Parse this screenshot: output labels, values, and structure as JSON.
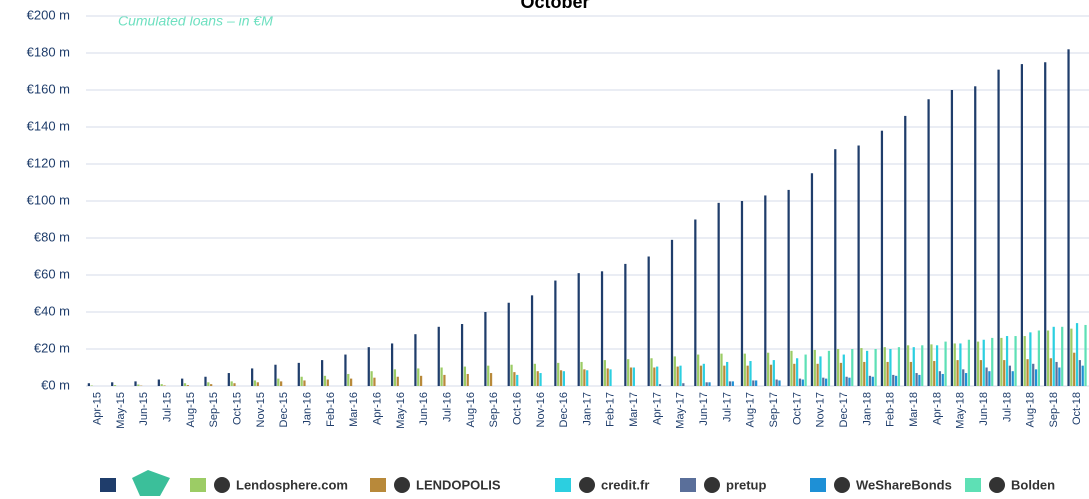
{
  "chart_data": {
    "type": "bar",
    "title": "October",
    "subtitle": "Cumulated loans – in €M",
    "categories": [
      "Apr-15",
      "May-15",
      "Jun-15",
      "Jul-15",
      "Aug-15",
      "Sep-15",
      "Oct-15",
      "Nov-15",
      "Dec-15",
      "Jan-16",
      "Feb-16",
      "Mar-16",
      "Apr-16",
      "May-16",
      "Jun-16",
      "Jul-16",
      "Aug-16",
      "Sep-16",
      "Oct-16",
      "Nov-16",
      "Dec-16",
      "Jan-17",
      "Feb-17",
      "Mar-17",
      "Apr-17",
      "May-17",
      "Jun-17",
      "Jul-17",
      "Aug-17",
      "Sep-17",
      "Oct-17",
      "Nov-17",
      "Dec-17",
      "Jan-18",
      "Feb-18",
      "Mar-18",
      "Apr-18",
      "May-18",
      "Jun-18",
      "Jul-18",
      "Aug-18",
      "Sep-18",
      "Oct-18"
    ],
    "series": [
      {
        "name": null,
        "color": "#1f3d6b",
        "values": [
          1.5,
          2,
          2.5,
          3.5,
          4,
          5,
          7,
          9.5,
          11.5,
          12.5,
          14,
          17,
          21,
          23,
          28,
          32,
          33.5,
          40,
          45,
          49,
          57,
          61,
          62,
          66,
          70,
          79,
          90,
          99,
          100,
          103,
          106,
          115,
          128,
          130,
          138,
          146,
          155,
          160,
          162,
          171,
          174,
          175,
          182
        ]
      },
      {
        "name": "Lendosphere.com",
        "color": "#9ccc65",
        "values": [
          0.3,
          0.5,
          0.8,
          1,
          1.5,
          2,
          2.5,
          3,
          4,
          5,
          5.5,
          6.5,
          8,
          9,
          9.5,
          10,
          10.5,
          11,
          11.5,
          12,
          12.5,
          13,
          14,
          14.5,
          15,
          16,
          17,
          17.5,
          17.5,
          18,
          19,
          19.5,
          20,
          20.5,
          21,
          22,
          22.5,
          23,
          24,
          26,
          27,
          30,
          31
        ]
      },
      {
        "name": "LENDOPOLIS",
        "color": "#b8893a",
        "values": [
          0,
          0,
          0.2,
          0.3,
          0.5,
          1,
          1.5,
          2,
          2.5,
          3,
          3.5,
          4,
          4.5,
          5,
          5.5,
          6,
          6.5,
          7,
          7.5,
          8,
          8.5,
          9,
          9.5,
          10,
          10,
          10.5,
          11,
          11,
          11,
          11.5,
          12,
          12,
          12.5,
          13,
          13,
          13,
          13.5,
          14,
          14,
          14,
          14.5,
          15,
          18
        ]
      },
      {
        "name": "credit.fr",
        "color": "#2ccfe0",
        "values": [
          0,
          0,
          0,
          0,
          0,
          0,
          0,
          0,
          0,
          0,
          0,
          0,
          0,
          0,
          0,
          0,
          0,
          0,
          6,
          7,
          8,
          8.5,
          9,
          10,
          10.5,
          11,
          12,
          13,
          13.5,
          14,
          15,
          16,
          17,
          19,
          20,
          21,
          22,
          23,
          25,
          27,
          29,
          32,
          34
        ]
      },
      {
        "name": "pretup",
        "color": "#5a6f9a",
        "values": [
          0,
          0,
          0,
          0,
          0,
          0,
          0,
          0,
          0,
          0,
          0,
          0,
          0,
          0,
          0,
          0,
          0,
          0,
          0,
          0,
          0,
          0,
          0,
          0,
          1,
          1.5,
          2,
          2.5,
          3,
          3.5,
          4,
          4.5,
          5,
          5.5,
          6,
          7,
          8,
          9,
          10,
          11,
          12,
          13,
          14
        ]
      },
      {
        "name": "WeShareBonds",
        "color": "#1e90d6",
        "values": [
          0,
          0,
          0,
          0,
          0,
          0,
          0,
          0,
          0,
          0,
          0,
          0,
          0,
          0,
          0,
          0,
          0,
          0,
          0,
          0,
          0,
          0,
          0,
          0,
          0,
          0,
          2,
          2.5,
          3,
          3,
          3.5,
          4,
          4.5,
          5,
          5.5,
          6,
          6.5,
          7,
          8,
          8,
          9,
          10,
          11
        ]
      },
      {
        "name": "Bolden",
        "color": "#5ee0b5",
        "values": [
          0,
          0,
          0,
          0,
          0,
          0,
          0,
          0,
          0,
          0,
          0,
          0,
          0,
          0,
          0,
          0,
          0,
          0,
          0,
          0,
          0,
          0,
          0,
          0,
          0,
          0,
          0,
          0,
          0,
          0,
          17,
          19,
          20,
          20,
          21,
          22,
          24,
          25,
          26,
          27,
          30,
          32,
          33
        ]
      }
    ],
    "ylim": [
      0,
      200
    ],
    "yticks": [
      {
        "value": 0,
        "label": "€0 m"
      },
      {
        "value": 20,
        "label": "€20 m"
      },
      {
        "value": 40,
        "label": "€40 m"
      },
      {
        "value": 60,
        "label": "€60 m"
      },
      {
        "value": 80,
        "label": "€80 m"
      },
      {
        "value": 100,
        "label": "€100 m"
      },
      {
        "value": 120,
        "label": "€120 m"
      },
      {
        "value": 140,
        "label": "€140 m"
      },
      {
        "value": 160,
        "label": "€160 m"
      },
      {
        "value": 180,
        "label": "€180 m"
      },
      {
        "value": 200,
        "label": "€200 m"
      }
    ],
    "grid": true
  }
}
